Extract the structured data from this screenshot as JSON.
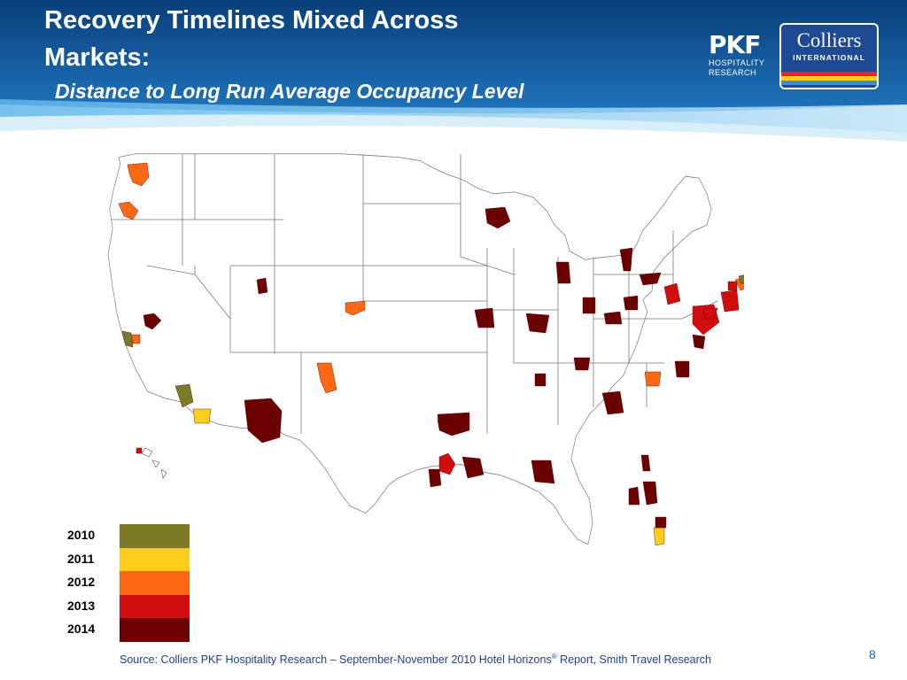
{
  "slide": {
    "title_line1": "Recovery Timelines Mixed Across",
    "title_line2": "Markets:",
    "subtitle": "Distance to Long Run Average Occupancy Level",
    "page_number": "8"
  },
  "logos": {
    "pkf": {
      "mark": "PKF",
      "line1": "HOSPITALITY",
      "line2": "RESEARCH"
    },
    "colliers": {
      "name": "Colliers",
      "tagline": "INTERNATIONAL"
    }
  },
  "colors": {
    "header_dark": "#0a4a8c",
    "header_light": "#2a8fd4",
    "y2010": "#7b7a27",
    "y2011": "#fdcd1e",
    "y2012": "#fc6814",
    "y2013": "#d10d0d",
    "y2014": "#6b0000"
  },
  "legend": [
    {
      "label": "2010",
      "color": "#7b7a27"
    },
    {
      "label": "2011",
      "color": "#fdcd1e"
    },
    {
      "label": "2012",
      "color": "#fc6814"
    },
    {
      "label": "2013",
      "color": "#d10d0d"
    },
    {
      "label": "2014",
      "color": "#6b0000"
    }
  ],
  "source": {
    "prefix": "Source: Colliers PKF Hospitality Research – September-November  2010 Hotel Horizons",
    "reg": "®",
    "suffix": " Report,  Smith Travel Research"
  }
}
